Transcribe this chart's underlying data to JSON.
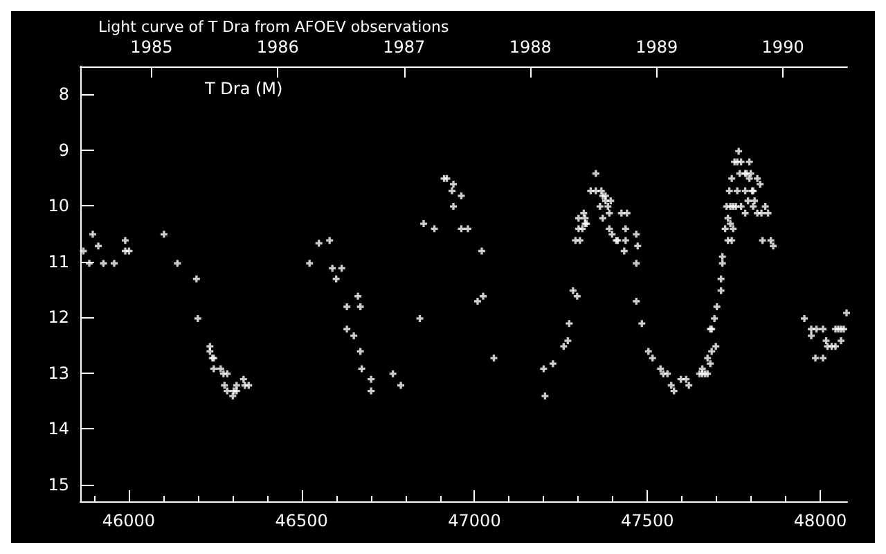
{
  "chart_data": {
    "type": "scatter",
    "title": "Light curve of T Dra from AFOEV observations",
    "annotations": [
      "T Dra (M)"
    ],
    "marker": "cross",
    "xlim": [
      45860,
      48078
    ],
    "xticks": [
      46000,
      46500,
      47000,
      47500,
      48000
    ],
    "x2lim": [
      1984.436,
      1990.509
    ],
    "x2ticks": [
      1985,
      1986,
      1987,
      1988,
      1989,
      1990
    ],
    "ylim": [
      15.3,
      7.5
    ],
    "yticks": [
      8,
      9,
      10,
      11,
      12,
      13,
      14,
      15
    ],
    "series": [
      {
        "color": "#ffffff",
        "x": [
          45869,
          45886,
          45896,
          45912,
          45927,
          45958,
          45990,
          45990,
          46001,
          46102,
          46141,
          46196,
          46200,
          46235,
          46235,
          46242,
          46246,
          46246,
          46266,
          46274,
          46285,
          46277,
          46312,
          46285,
          46304,
          46312,
          46301,
          46332,
          46336,
          46347,
          46523,
          46550,
          46581,
          46589,
          46616,
          46600,
          46663,
          46631,
          46670,
          46631,
          46651,
          46670,
          46674,
          46701,
          46701,
          46764,
          46787,
          46842,
          46853,
          46884,
          46939,
          46962,
          46981,
          47021,
          47009,
          47025,
          47056,
          46912,
          46920,
          46939,
          46935,
          46962,
          47204,
          47200,
          47227,
          47258,
          47270,
          47274,
          47285,
          47297,
          47292,
          47305,
          47301,
          47312,
          47301,
          47316,
          47320,
          47320,
          47324,
          47336,
          47351,
          47367,
          47351,
          47371,
          47379,
          47379,
          47394,
          47363,
          47386,
          47390,
          47425,
          47441,
          47371,
          47390,
          47398,
          47410,
          47414,
          47437,
          47437,
          47433,
          47468,
          47472,
          47468,
          47468,
          47484,
          47503,
          47515,
          47538,
          47546,
          47558,
          47569,
          47577,
          47597,
          47612,
          47620,
          47651,
          47659,
          47667,
          47674,
          47659,
          47682,
          47674,
          47686,
          47698,
          47682,
          47686,
          47694,
          47701,
          47713,
          47713,
          47717,
          47717,
          47733,
          47744,
          47725,
          47748,
          47740,
          47733,
          47729,
          47740,
          47748,
          47756,
          47771,
          47737,
          47760,
          47783,
          47803,
          47806,
          47744,
          47767,
          47783,
          47787,
          47799,
          47752,
          47760,
          47771,
          47795,
          47764,
          47795,
          47818,
          47826,
          47791,
          47810,
          47806,
          47841,
          47783,
          47818,
          47830,
          47849,
          47833,
          47857,
          47864,
          47954,
          47974,
          47989,
          48008,
          47974,
          48017,
          48021,
          48033,
          48044,
          47986,
          48008,
          48044,
          48052,
          48060,
          48068,
          48060,
          48076
        ],
        "values": [
          10.81,
          11.03,
          10.51,
          10.72,
          11.03,
          11.03,
          10.62,
          10.81,
          10.81,
          10.51,
          11.03,
          11.31,
          12.02,
          12.52,
          12.61,
          12.73,
          12.73,
          12.92,
          12.92,
          13.01,
          13.01,
          13.22,
          13.22,
          13.32,
          13.32,
          13.32,
          13.41,
          13.11,
          13.22,
          13.22,
          11.03,
          10.67,
          10.62,
          11.12,
          11.12,
          11.31,
          11.62,
          11.81,
          11.81,
          12.21,
          12.33,
          12.61,
          12.92,
          13.11,
          13.32,
          13.01,
          13.22,
          12.02,
          10.32,
          10.41,
          10.01,
          10.41,
          10.41,
          10.81,
          11.71,
          11.62,
          12.73,
          9.51,
          9.51,
          9.61,
          9.73,
          9.82,
          13.41,
          12.92,
          12.83,
          12.52,
          12.42,
          12.11,
          11.52,
          11.62,
          10.62,
          10.62,
          10.41,
          10.41,
          10.22,
          10.13,
          10.22,
          10.32,
          10.32,
          9.73,
          9.73,
          9.73,
          9.42,
          9.82,
          9.82,
          9.91,
          9.91,
          10.01,
          10.01,
          10.13,
          10.13,
          10.13,
          10.22,
          10.41,
          10.51,
          10.62,
          10.62,
          10.41,
          10.62,
          10.81,
          10.51,
          10.72,
          11.03,
          11.71,
          12.11,
          12.61,
          12.73,
          12.92,
          13.01,
          13.01,
          13.22,
          13.32,
          13.11,
          13.11,
          13.22,
          13.01,
          13.01,
          13.01,
          13.01,
          12.92,
          12.83,
          12.73,
          12.61,
          12.52,
          12.21,
          12.21,
          12.02,
          11.81,
          11.52,
          11.31,
          11.03,
          10.91,
          10.62,
          10.62,
          10.41,
          10.41,
          10.32,
          10.22,
          10.01,
          10.01,
          10.01,
          10.01,
          10.01,
          9.73,
          9.73,
          9.73,
          9.73,
          9.73,
          9.51,
          9.42,
          9.42,
          9.42,
          9.42,
          9.21,
          9.21,
          9.21,
          9.21,
          9.02,
          9.51,
          9.51,
          9.61,
          9.91,
          9.91,
          10.01,
          10.01,
          10.13,
          10.13,
          10.13,
          10.13,
          10.62,
          10.62,
          10.72,
          12.02,
          12.21,
          12.21,
          12.21,
          12.33,
          12.42,
          12.52,
          12.52,
          12.52,
          12.73,
          12.73,
          12.21,
          12.21,
          12.21,
          12.21,
          12.42,
          11.92
        ]
      }
    ]
  }
}
